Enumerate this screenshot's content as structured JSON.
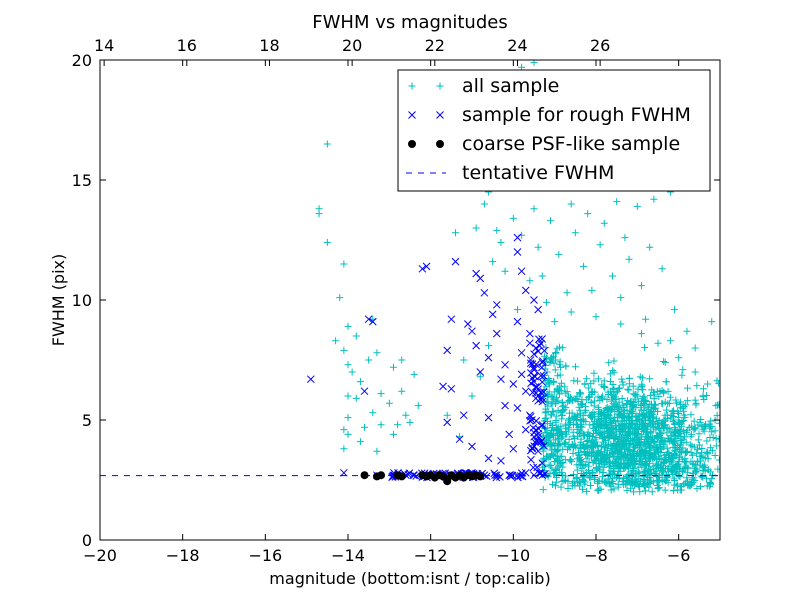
{
  "chart_data": {
    "type": "scatter",
    "title": "FWHM vs magnitudes",
    "xlabel": "magnitude (bottom:isnt / top:calib)",
    "ylabel": "FWHM (pix)",
    "xlim": [
      -20,
      -5
    ],
    "ylim": [
      0,
      20
    ],
    "x_ticks": [
      "−20",
      "−18",
      "−16",
      "−14",
      "−12",
      "−10",
      "−8",
      "−6"
    ],
    "x_tick_values": [
      -20,
      -18,
      -16,
      -14,
      -12,
      -10,
      -8,
      -6
    ],
    "y_ticks": [
      "0",
      "5",
      "10",
      "15",
      "20"
    ],
    "y_tick_values": [
      0,
      5,
      10,
      15,
      20
    ],
    "top_axis": {
      "ticks": [
        "14",
        "16",
        "18",
        "20",
        "22",
        "24",
        "26"
      ],
      "tick_values": [
        14,
        16,
        18,
        20,
        22,
        24,
        26
      ],
      "offset": 33.9
    },
    "grid": false,
    "legend_position": "top-right",
    "legend": [
      "all sample",
      "sample for rough FWHM",
      "coarse PSF-like sample",
      "tentative FWHM"
    ],
    "colors": {
      "all": "#00bfbf",
      "rough": "#0000ff",
      "psf": "#000000",
      "fwhm": "#0000ff"
    },
    "series": [
      {
        "name": "all sample",
        "marker": "plus",
        "points": [
          [
            -14.5,
            16.5
          ],
          [
            -14.7,
            13.8
          ],
          [
            -14.7,
            13.6
          ],
          [
            -14.5,
            12.4
          ],
          [
            -14.1,
            11.5
          ],
          [
            -14.2,
            10.1
          ],
          [
            -14.0,
            8.9
          ],
          [
            -14.3,
            8.3
          ],
          [
            -13.8,
            8.5
          ],
          [
            -14.1,
            7.9
          ],
          [
            -14.0,
            7.3
          ],
          [
            -13.9,
            7.0
          ],
          [
            -13.5,
            7.5
          ],
          [
            -13.3,
            7.8
          ],
          [
            -13.7,
            6.6
          ],
          [
            -14.0,
            6.0
          ],
          [
            -13.8,
            5.9
          ],
          [
            -14.0,
            5.1
          ],
          [
            -14.1,
            4.6
          ],
          [
            -14.0,
            4.4
          ],
          [
            -13.6,
            4.7
          ],
          [
            -13.4,
            5.3
          ],
          [
            -13.2,
            6.1
          ],
          [
            -13.0,
            5.7
          ],
          [
            -12.9,
            7.2
          ],
          [
            -12.7,
            7.5
          ],
          [
            -12.4,
            6.9
          ],
          [
            -12.7,
            6.2
          ],
          [
            -12.8,
            4.8
          ],
          [
            -12.5,
            4.9
          ],
          [
            -13.2,
            4.8
          ],
          [
            -13.4,
            9.2
          ],
          [
            -12.6,
            5.2
          ],
          [
            -12.3,
            5.6
          ],
          [
            -14.1,
            3.8
          ],
          [
            -13.7,
            4.1
          ],
          [
            -12.9,
            4.4
          ],
          [
            -13.3,
            3.7
          ],
          [
            -11.2,
            7.5
          ],
          [
            -11.0,
            6.0
          ],
          [
            -11.6,
            5.2
          ],
          [
            -11.3,
            4.3
          ],
          [
            -10.8,
            6.8
          ],
          [
            -10.6,
            8.1
          ],
          [
            -10.5,
            11.6
          ],
          [
            -10.3,
            12.4
          ],
          [
            -10.9,
            13.0
          ],
          [
            -10.6,
            14.5
          ],
          [
            -10.4,
            12.9
          ],
          [
            -10.2,
            11.2
          ],
          [
            -10.0,
            13.4
          ],
          [
            -9.8,
            12.7
          ],
          [
            -9.6,
            10.8
          ],
          [
            -9.9,
            9.6
          ],
          [
            -9.5,
            13.8
          ],
          [
            -9.4,
            12.2
          ],
          [
            -9.3,
            11.0
          ],
          [
            -10.7,
            14.0
          ],
          [
            -11.4,
            12.8
          ],
          [
            -9.5,
            19.9
          ],
          [
            -9.3,
            17.6
          ],
          [
            -9.2,
            15.5
          ],
          [
            -9.0,
            16.2
          ],
          [
            -8.8,
            14.8
          ],
          [
            -8.6,
            14.0
          ],
          [
            -8.4,
            15.8
          ],
          [
            -8.2,
            13.6
          ],
          [
            -8.0,
            14.7
          ],
          [
            -7.8,
            13.2
          ],
          [
            -7.5,
            14.1
          ],
          [
            -7.3,
            12.6
          ],
          [
            -7.0,
            13.9
          ],
          [
            -6.7,
            12.2
          ],
          [
            -6.4,
            11.3
          ],
          [
            -6.6,
            14.2
          ],
          [
            -7.2,
            11.7
          ],
          [
            -7.9,
            12.3
          ],
          [
            -8.5,
            12.8
          ],
          [
            -9.1,
            13.3
          ],
          [
            -8.9,
            11.9
          ],
          [
            -8.3,
            11.4
          ],
          [
            -7.6,
            11.0
          ],
          [
            -6.9,
            10.6
          ],
          [
            -6.1,
            9.6
          ],
          [
            -5.8,
            8.7
          ],
          [
            -5.6,
            8.0
          ],
          [
            -5.2,
            9.1
          ],
          [
            -5.9,
            7.1
          ],
          [
            -5.4,
            6.3
          ],
          [
            -5.1,
            5.6
          ],
          [
            -6.2,
            8.3
          ],
          [
            -6.8,
            9.2
          ],
          [
            -7.4,
            10.1
          ],
          [
            -8.1,
            10.4
          ],
          [
            -8.7,
            10.3
          ],
          [
            -9.2,
            9.9
          ],
          [
            -9.0,
            9.1
          ],
          [
            -8.6,
            9.5
          ],
          [
            -8.0,
            9.3
          ],
          [
            -7.4,
            9.0
          ],
          [
            -6.9,
            8.6
          ],
          [
            -6.5,
            8.2
          ],
          [
            -6.0,
            7.6
          ],
          [
            -5.6,
            7.0
          ],
          [
            -5.3,
            6.5
          ],
          [
            -5.0,
            5.0
          ],
          [
            -9.8,
            19.7
          ],
          [
            -8.2,
            17.8
          ],
          [
            -7.0,
            16.6
          ],
          [
            -6.5,
            15.3
          ],
          [
            -6.2,
            14.5
          ],
          [
            -8.8,
            16.5
          ],
          [
            -9.4,
            18.4
          ]
        ],
        "cluster": {
          "x_range": [
            -9.3,
            -5.0
          ],
          "y_range": [
            2.0,
            8.5
          ],
          "center": [
            -7.2,
            4.0
          ]
        }
      },
      {
        "name": "sample for rough FWHM",
        "marker": "x",
        "points": [
          [
            -14.9,
            6.7
          ],
          [
            -13.4,
            9.1
          ],
          [
            -13.5,
            9.2
          ],
          [
            -13.6,
            6.2
          ],
          [
            -12.2,
            11.3
          ],
          [
            -12.1,
            11.4
          ],
          [
            -11.7,
            6.4
          ],
          [
            -11.5,
            6.3
          ],
          [
            -11.6,
            7.9
          ],
          [
            -11.5,
            9.2
          ],
          [
            -11.6,
            4.9
          ],
          [
            -11.2,
            5.2
          ],
          [
            -11.3,
            4.2
          ],
          [
            -11.0,
            3.9
          ],
          [
            -11.4,
            11.6
          ],
          [
            -11.1,
            9.0
          ],
          [
            -11.0,
            8.7
          ],
          [
            -10.9,
            8.1
          ],
          [
            -10.8,
            7.0
          ],
          [
            -10.6,
            5.1
          ],
          [
            -10.8,
            10.9
          ],
          [
            -10.9,
            11.1
          ],
          [
            -10.7,
            10.3
          ],
          [
            -10.5,
            9.4
          ],
          [
            -10.4,
            9.8
          ],
          [
            -10.6,
            7.6
          ],
          [
            -10.3,
            6.7
          ],
          [
            -10.2,
            5.6
          ],
          [
            -10.1,
            4.4
          ],
          [
            -10.6,
            3.4
          ],
          [
            -10.3,
            3.3
          ],
          [
            -10.0,
            3.8
          ],
          [
            -9.9,
            12.0
          ],
          [
            -9.8,
            11.2
          ],
          [
            -9.7,
            10.4
          ],
          [
            -9.9,
            9.1
          ],
          [
            -9.6,
            8.6
          ],
          [
            -9.8,
            7.8
          ],
          [
            -9.5,
            7.1
          ],
          [
            -9.7,
            6.2
          ],
          [
            -9.4,
            5.8
          ],
          [
            -9.6,
            5.2
          ],
          [
            -9.3,
            4.8
          ],
          [
            -9.5,
            4.3
          ],
          [
            -9.4,
            3.7
          ],
          [
            -9.3,
            3.2
          ],
          [
            -9.5,
            10.0
          ],
          [
            -9.4,
            9.6
          ],
          [
            -9.6,
            8.2
          ],
          [
            -9.8,
            6.9
          ],
          [
            -10.0,
            6.5
          ],
          [
            -10.2,
            7.3
          ],
          [
            -10.4,
            8.6
          ],
          [
            -9.9,
            5.5
          ],
          [
            -9.7,
            4.6
          ],
          [
            -9.5,
            6.6
          ],
          [
            -9.3,
            7.4
          ],
          [
            -9.9,
            12.6
          ],
          [
            -14.1,
            2.8
          ],
          [
            -13.3,
            2.7
          ],
          [
            -12.8,
            2.7
          ],
          [
            -12.4,
            2.7
          ],
          [
            -11.9,
            2.7
          ],
          [
            -11.4,
            2.7
          ],
          [
            -11.0,
            2.8
          ],
          [
            -10.7,
            2.7
          ],
          [
            -10.4,
            2.7
          ],
          [
            -10.1,
            2.7
          ],
          [
            -9.9,
            2.7
          ],
          [
            -9.7,
            2.8
          ],
          [
            -9.5,
            2.7
          ],
          [
            -9.3,
            2.7
          ],
          [
            -12.6,
            2.7
          ],
          [
            -11.7,
            2.7
          ],
          [
            -11.2,
            2.7
          ],
          [
            -10.8,
            2.7
          ]
        ]
      },
      {
        "name": "coarse PSF-like sample",
        "marker": "dot",
        "points": [
          [
            -13.6,
            2.7
          ],
          [
            -13.3,
            2.65
          ],
          [
            -13.2,
            2.7
          ],
          [
            -12.8,
            2.7
          ],
          [
            -12.7,
            2.65
          ],
          [
            -12.2,
            2.7
          ],
          [
            -12.1,
            2.65
          ],
          [
            -12.0,
            2.7
          ],
          [
            -11.9,
            2.6
          ],
          [
            -11.8,
            2.7
          ],
          [
            -11.7,
            2.65
          ],
          [
            -11.6,
            2.5
          ],
          [
            -11.5,
            2.7
          ],
          [
            -11.4,
            2.6
          ],
          [
            -11.3,
            2.7
          ],
          [
            -11.2,
            2.6
          ],
          [
            -11.1,
            2.7
          ],
          [
            -11.0,
            2.65
          ],
          [
            -10.9,
            2.7
          ],
          [
            -10.8,
            2.65
          ],
          [
            -11.6,
            2.45
          ]
        ]
      }
    ],
    "reference_line": {
      "name": "tentative FWHM",
      "y": 2.68,
      "style": "dashed"
    }
  }
}
